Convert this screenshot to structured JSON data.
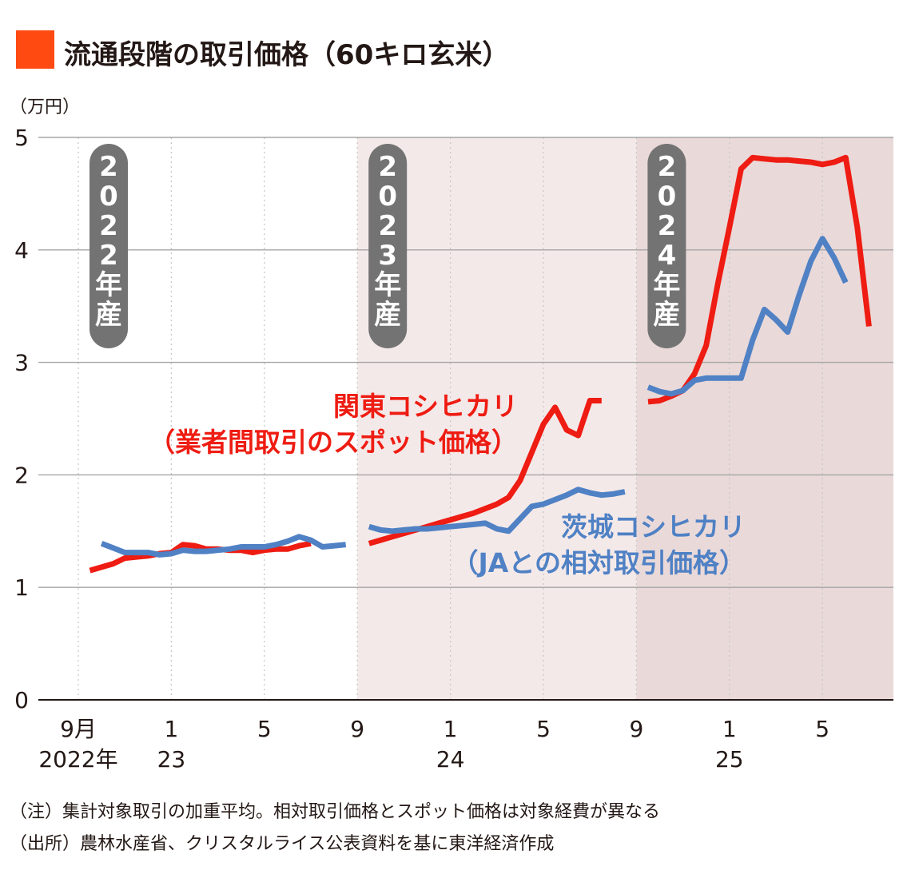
{
  "chart_data": {
    "type": "line",
    "title": "流通段階の取引価格（60キロ玄米）",
    "unit": "（万円）",
    "ylim": [
      0,
      5
    ],
    "yticks": [
      "0",
      "1",
      "2",
      "3",
      "4",
      "5"
    ],
    "x_start": "2022-09",
    "x_ticks": [
      {
        "month": 0,
        "top": "9月",
        "bottom": "2022年"
      },
      {
        "month": 4,
        "top": "1",
        "bottom": "23"
      },
      {
        "month": 8,
        "top": "5",
        "bottom": ""
      },
      {
        "month": 12,
        "top": "9",
        "bottom": ""
      },
      {
        "month": 16,
        "top": "1",
        "bottom": "24"
      },
      {
        "month": 20,
        "top": "5",
        "bottom": ""
      },
      {
        "month": 24,
        "top": "9",
        "bottom": ""
      },
      {
        "month": 28,
        "top": "1",
        "bottom": "25"
      },
      {
        "month": 32,
        "top": "5",
        "bottom": ""
      }
    ],
    "crop_years": [
      {
        "label": "2022年産",
        "chars": [
          "2",
          "0",
          "2",
          "2",
          "年",
          "産"
        ],
        "start": 0,
        "end": 12,
        "shade": "#ffffff"
      },
      {
        "label": "2023年産",
        "chars": [
          "2",
          "0",
          "2",
          "3",
          "年",
          "産"
        ],
        "start": 12,
        "end": 24,
        "shade": "#f4e9e9"
      },
      {
        "label": "2024年産",
        "chars": [
          "2",
          "0",
          "2",
          "4",
          "年",
          "産"
        ],
        "start": 24,
        "end": 36,
        "shade": "#ead9d9"
      }
    ],
    "series": [
      {
        "name": "関東コシヒカリ（業者間取引のスポット価格）",
        "label_lines": [
          "関東コシヒカリ",
          "（業者間取引のスポット価格）"
        ],
        "color": "#ee1c12",
        "segments": [
          [
            [
              0.5,
              1.15
            ],
            [
              1.0,
              1.18
            ],
            [
              1.5,
              1.21
            ],
            [
              2.0,
              1.26
            ],
            [
              2.5,
              1.27
            ],
            [
              3.0,
              1.28
            ],
            [
              3.5,
              1.3
            ],
            [
              4.0,
              1.31
            ],
            [
              4.5,
              1.38
            ],
            [
              5.0,
              1.37
            ],
            [
              5.5,
              1.34
            ],
            [
              6.0,
              1.34
            ],
            [
              6.5,
              1.33
            ],
            [
              7.0,
              1.33
            ],
            [
              7.5,
              1.31
            ],
            [
              8.0,
              1.33
            ],
            [
              8.5,
              1.34
            ],
            [
              9.0,
              1.34
            ],
            [
              9.5,
              1.37
            ],
            [
              10.0,
              1.39
            ]
          ],
          [
            [
              12.5,
              1.39
            ],
            [
              13.0,
              1.42
            ],
            [
              13.5,
              1.45
            ],
            [
              14.0,
              1.48
            ],
            [
              14.5,
              1.51
            ],
            [
              15.0,
              1.54
            ],
            [
              15.5,
              1.57
            ],
            [
              16.0,
              1.6
            ],
            [
              16.5,
              1.63
            ],
            [
              17.0,
              1.66
            ],
            [
              17.5,
              1.7
            ],
            [
              18.0,
              1.74
            ],
            [
              18.5,
              1.8
            ],
            [
              19.0,
              1.95
            ],
            [
              19.5,
              2.2
            ],
            [
              20.0,
              2.45
            ],
            [
              20.5,
              2.6
            ],
            [
              21.0,
              2.4
            ],
            [
              21.5,
              2.35
            ],
            [
              22.0,
              2.66
            ],
            [
              22.5,
              2.66
            ]
          ],
          [
            [
              24.5,
              2.65
            ],
            [
              25.0,
              2.66
            ],
            [
              25.5,
              2.7
            ],
            [
              26.0,
              2.75
            ],
            [
              26.5,
              2.9
            ],
            [
              27.0,
              3.15
            ],
            [
              27.5,
              3.7
            ],
            [
              28.0,
              4.2
            ],
            [
              28.5,
              4.72
            ],
            [
              29.0,
              4.82
            ],
            [
              29.5,
              4.81
            ],
            [
              30.0,
              4.8
            ],
            [
              30.5,
              4.8
            ],
            [
              31.0,
              4.79
            ],
            [
              31.5,
              4.78
            ],
            [
              32.0,
              4.76
            ],
            [
              32.5,
              4.78
            ],
            [
              33.0,
              4.82
            ],
            [
              33.5,
              4.2
            ],
            [
              34.0,
              3.32
            ]
          ]
        ]
      },
      {
        "name": "茨城コシヒカリ（JAとの相対取引価格）",
        "label_lines": [
          "茨城コシヒカリ",
          "（JAとの相対取引価格）"
        ],
        "color": "#4f81c4",
        "segments": [
          [
            [
              1.0,
              1.39
            ],
            [
              1.5,
              1.35
            ],
            [
              2.0,
              1.31
            ],
            [
              2.5,
              1.31
            ],
            [
              3.0,
              1.31
            ],
            [
              3.5,
              1.29
            ],
            [
              4.0,
              1.3
            ],
            [
              4.5,
              1.33
            ],
            [
              5.0,
              1.32
            ],
            [
              5.5,
              1.32
            ],
            [
              6.0,
              1.33
            ],
            [
              6.5,
              1.34
            ],
            [
              7.0,
              1.36
            ],
            [
              7.5,
              1.36
            ],
            [
              8.0,
              1.36
            ],
            [
              8.5,
              1.38
            ],
            [
              9.0,
              1.41
            ],
            [
              9.5,
              1.45
            ],
            [
              10.0,
              1.42
            ],
            [
              10.5,
              1.36
            ],
            [
              11.0,
              1.37
            ],
            [
              11.5,
              1.38
            ]
          ],
          [
            [
              12.5,
              1.54
            ],
            [
              13.0,
              1.51
            ],
            [
              13.5,
              1.5
            ],
            [
              14.0,
              1.51
            ],
            [
              14.5,
              1.52
            ],
            [
              15.0,
              1.52
            ],
            [
              15.5,
              1.53
            ],
            [
              16.0,
              1.54
            ],
            [
              16.5,
              1.55
            ],
            [
              17.0,
              1.56
            ],
            [
              17.5,
              1.57
            ],
            [
              18.0,
              1.52
            ],
            [
              18.5,
              1.5
            ],
            [
              19.0,
              1.61
            ],
            [
              19.5,
              1.72
            ],
            [
              20.0,
              1.74
            ],
            [
              20.5,
              1.78
            ],
            [
              21.0,
              1.82
            ],
            [
              21.5,
              1.87
            ],
            [
              22.0,
              1.84
            ],
            [
              22.5,
              1.82
            ],
            [
              23.0,
              1.83
            ],
            [
              23.5,
              1.85
            ]
          ],
          [
            [
              24.5,
              2.78
            ],
            [
              25.0,
              2.74
            ],
            [
              25.5,
              2.72
            ],
            [
              26.0,
              2.75
            ],
            [
              26.5,
              2.84
            ],
            [
              27.0,
              2.86
            ],
            [
              27.5,
              2.86
            ],
            [
              28.0,
              2.86
            ],
            [
              28.5,
              2.86
            ],
            [
              29.0,
              3.2
            ],
            [
              29.5,
              3.47
            ],
            [
              30.0,
              3.38
            ],
            [
              30.5,
              3.27
            ],
            [
              31.0,
              3.6
            ],
            [
              31.5,
              3.9
            ],
            [
              32.0,
              4.1
            ],
            [
              32.5,
              3.93
            ],
            [
              33.0,
              3.71
            ]
          ]
        ]
      }
    ]
  },
  "notes": [
    "（注）集計対象取引の加重平均。相対取引価格とスポット価格は対象経費が異なる",
    "（出所）農林水産省、クリスタルライス公表資料を基に東洋経済作成"
  ]
}
